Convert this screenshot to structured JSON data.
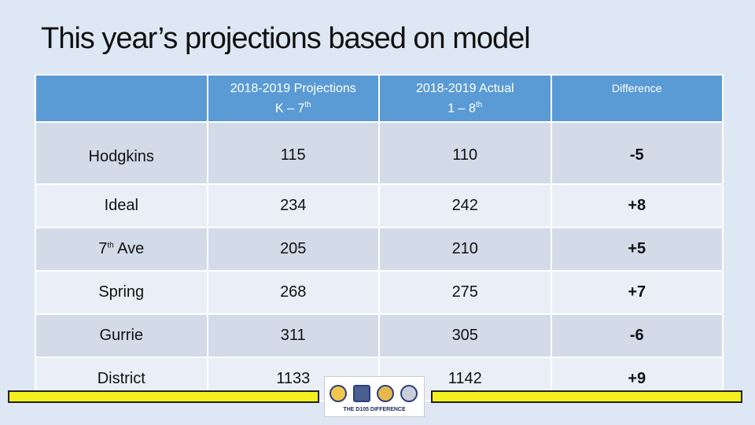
{
  "title": "This year’s projections based on model",
  "table": {
    "headers": {
      "projections_line1": "2018-2019 Projections",
      "projections_line2": "K – 7",
      "projections_sup": "th",
      "actual_line1": "2018-2019 Actual",
      "actual_line2": "1 – 8",
      "actual_sup": "th",
      "difference": "Difference"
    },
    "rows": [
      {
        "name": "Hodgkins",
        "projection": "115",
        "actual": "110",
        "difference": "-5"
      },
      {
        "name": "Ideal",
        "projection": "234",
        "actual": "242",
        "difference": "+8"
      },
      {
        "name_prefix": "7",
        "name_sup": "th",
        "name_suffix": " Ave",
        "projection": "205",
        "actual": "210",
        "difference": "+5"
      },
      {
        "name": "Spring",
        "projection": "268",
        "actual": "275",
        "difference": "+7"
      },
      {
        "name": "Gurrie",
        "projection": "311",
        "actual": "305",
        "difference": "-6"
      },
      {
        "name": "District",
        "projection": "1133",
        "actual": "1142",
        "difference": "+9"
      }
    ]
  },
  "footer": {
    "logo_text": "THE D105 DIFFERENCE",
    "bar_color": "#f4f01e"
  },
  "colors": {
    "header": "#5b9bd5",
    "row_dark": "#d3dbe9",
    "row_light": "#eaeff7",
    "background": "#dde8f4"
  }
}
